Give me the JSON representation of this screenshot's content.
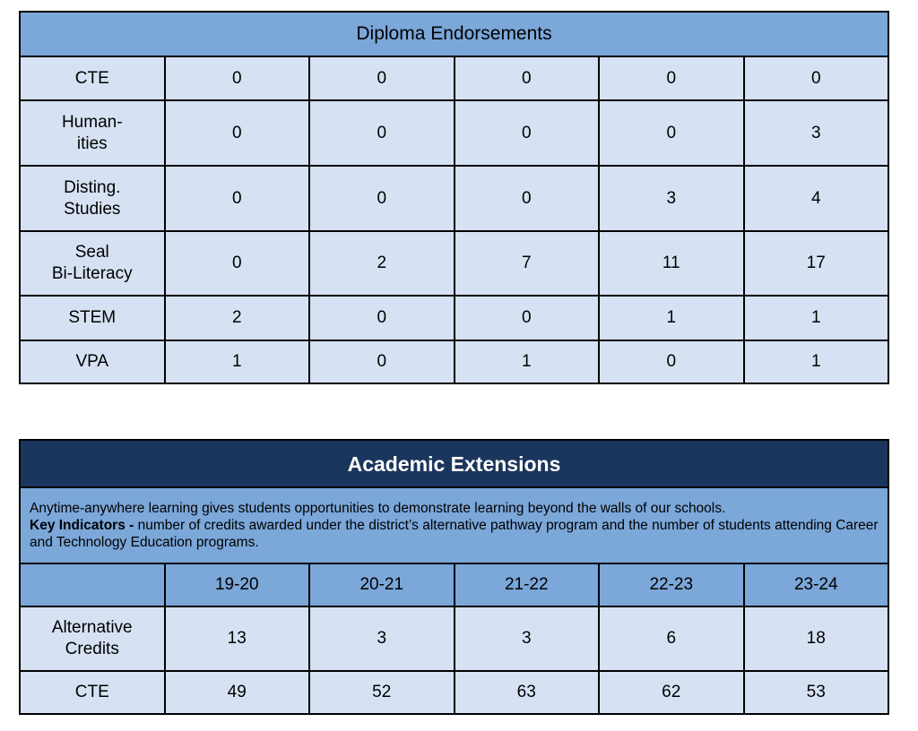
{
  "diploma": {
    "title": "Diploma Endorsements",
    "rows": [
      {
        "label": "CTE",
        "values": [
          "0",
          "0",
          "0",
          "0",
          "0"
        ]
      },
      {
        "label": "Human-\nities",
        "values": [
          "0",
          "0",
          "0",
          "0",
          "3"
        ]
      },
      {
        "label": "Disting.\nStudies",
        "values": [
          "0",
          "0",
          "0",
          "3",
          "4"
        ]
      },
      {
        "label": "Seal\nBi-Literacy",
        "values": [
          "0",
          "2",
          "7",
          "11",
          "17"
        ]
      },
      {
        "label": "STEM",
        "values": [
          "2",
          "0",
          "0",
          "1",
          "1"
        ]
      },
      {
        "label": "VPA",
        "values": [
          "1",
          "0",
          "1",
          "0",
          "1"
        ]
      }
    ]
  },
  "extensions": {
    "title": "Academic Extensions",
    "description": "Anytime-anywhere learning gives students opportunities to demonstrate learning beyond the walls of our schools.",
    "key_label": "Key Indicators -",
    "key_text": " number of credits awarded under the district’s alternative pathway program and the number of students attending Career and Technology Education programs.",
    "columns": [
      "19-20",
      "20-21",
      "21-22",
      "22-23",
      "23-24"
    ],
    "rows": [
      {
        "label": "Alternative\nCredits",
        "values": [
          "13",
          "3",
          "3",
          "6",
          "18"
        ]
      },
      {
        "label": "CTE",
        "values": [
          "49",
          "52",
          "63",
          "62",
          "53"
        ]
      }
    ]
  },
  "colors": {
    "light_header": "#7ba7d9",
    "cell": "#d6e2f3",
    "dark_header": "#1b365d"
  }
}
